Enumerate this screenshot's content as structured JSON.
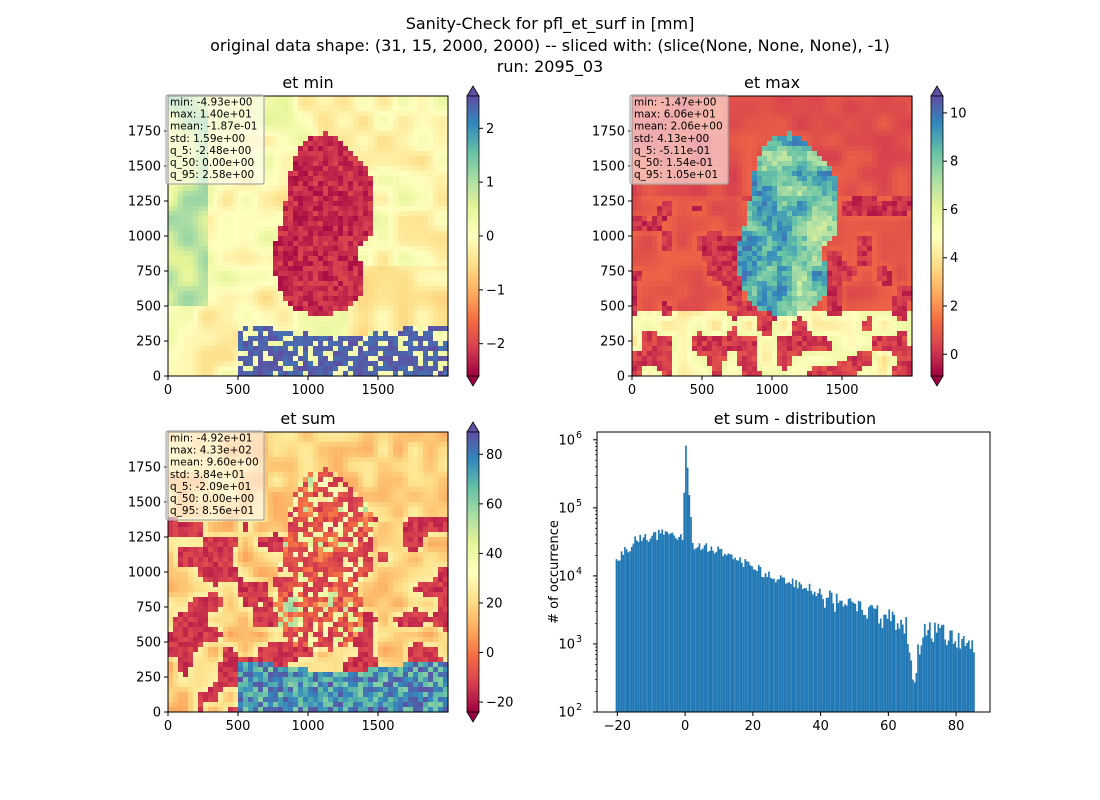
{
  "figure": {
    "title_lines": [
      "Sanity-Check for pfl_et_surf in [mm]",
      "original data shape: (31, 15, 2000, 2000) -- sliced with: (slice(None, None, None), -1)",
      "run: 2095_03"
    ]
  },
  "colormap": "Spectral",
  "colors": {
    "bar": "#1f77b4",
    "axis": "#000000",
    "stats_box_edge": "#aaaaaa"
  },
  "chart_data": [
    {
      "id": "et-min",
      "type": "heatmap",
      "title": "et min",
      "xlim": [
        0,
        2000
      ],
      "ylim": [
        0,
        2000
      ],
      "xticks": [
        0,
        500,
        1000,
        1500
      ],
      "yticks": [
        0,
        250,
        500,
        750,
        1000,
        1250,
        1500,
        1750
      ],
      "colorbar": {
        "vmin": -2.6,
        "vmax": 2.6,
        "ticks": [
          -2,
          -1,
          0,
          1,
          2
        ],
        "tick_labels": [
          "−2",
          "−1",
          "0",
          "1",
          "2"
        ],
        "extend": "both"
      },
      "stats": [
        "min: -4.93e+00",
        "max: 1.40e+01",
        "mean: -1.87e-01",
        "std: 1.59e+00",
        "q_5: -2.48e+00",
        "q_50: 0.00e+00",
        "q_95: 2.58e+00"
      ]
    },
    {
      "id": "et-max",
      "type": "heatmap",
      "title": "et max",
      "xlim": [
        0,
        2000
      ],
      "ylim": [
        0,
        2000
      ],
      "xticks": [
        0,
        500,
        1000,
        1500
      ],
      "yticks": [
        0,
        250,
        500,
        750,
        1000,
        1250,
        1500,
        1750
      ],
      "colorbar": {
        "vmin": -0.9,
        "vmax": 10.7,
        "ticks": [
          0,
          2,
          4,
          6,
          8,
          10
        ],
        "tick_labels": [
          "0",
          "2",
          "4",
          "6",
          "8",
          "10"
        ],
        "extend": "both"
      },
      "stats": [
        "min: -1.47e+00",
        "max: 6.06e+01",
        "mean: 2.06e+00",
        "std: 4.13e+00",
        "q_5: -5.11e-01",
        "q_50: 1.54e-01",
        "q_95: 1.05e+01"
      ]
    },
    {
      "id": "et-sum",
      "type": "heatmap",
      "title": "et sum",
      "xlim": [
        0,
        2000
      ],
      "ylim": [
        0,
        2000
      ],
      "xticks": [
        0,
        500,
        1000,
        1500
      ],
      "yticks": [
        0,
        250,
        500,
        750,
        1000,
        1250,
        1500,
        1750
      ],
      "colorbar": {
        "vmin": -24,
        "vmax": 89,
        "ticks": [
          -20,
          0,
          20,
          40,
          60,
          80
        ],
        "tick_labels": [
          "−20",
          "0",
          "20",
          "40",
          "60",
          "80"
        ],
        "extend": "both"
      },
      "stats": [
        "min: -4.92e+01",
        "max: 4.33e+02",
        "mean: 9.60e+00",
        "std: 3.84e+01",
        "q_5: -2.09e+01",
        "q_50: 0.00e+00",
        "q_95: 8.56e+01"
      ]
    },
    {
      "id": "et-sum-distribution",
      "type": "bar",
      "title": "et sum - distribution",
      "ylabel": "# of occurrence",
      "xlim": [
        -26,
        90
      ],
      "ylim": [
        100,
        1300000
      ],
      "yscale": "log",
      "xticks": [
        -20,
        0,
        20,
        40,
        60,
        80
      ],
      "xtick_labels": [
        "−20",
        "0",
        "20",
        "40",
        "60",
        "80"
      ],
      "ytick_labels": [
        "10^2",
        "10^3",
        "10^4",
        "10^5",
        "10^6"
      ],
      "bin_width": 0.5,
      "x": [
        -20,
        -15,
        -10,
        -5,
        -1,
        0,
        2,
        5,
        10,
        15,
        20,
        25,
        30,
        35,
        40,
        45,
        50,
        55,
        60,
        65,
        67,
        70,
        75,
        80,
        85
      ],
      "values": [
        18000,
        33000,
        40000,
        42000,
        35000,
        820000,
        30000,
        28000,
        24000,
        18000,
        13500,
        10000,
        8500,
        7000,
        5500,
        4200,
        3400,
        2900,
        2400,
        2000,
        300,
        1800,
        1500,
        1300,
        1100
      ]
    }
  ]
}
